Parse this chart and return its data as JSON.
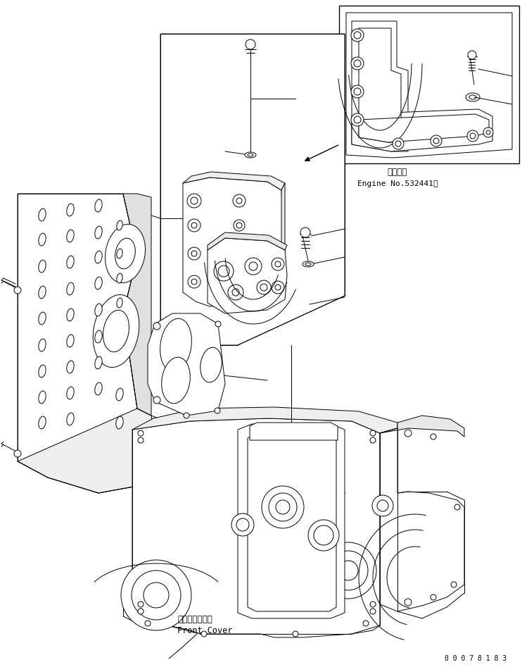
{
  "bg_color": "#ffffff",
  "line_color": "#000000",
  "lw": 0.7,
  "fig_width": 7.42,
  "fig_height": 9.47,
  "dpi": 100,
  "part_number": "0 0 0 7 8 1 8 3",
  "inset_text_line1": "適用号機",
  "inset_text_line2": "Engine No.532441～",
  "front_cover_jp": "フロントカバー",
  "front_cover_en": "Front Cover"
}
